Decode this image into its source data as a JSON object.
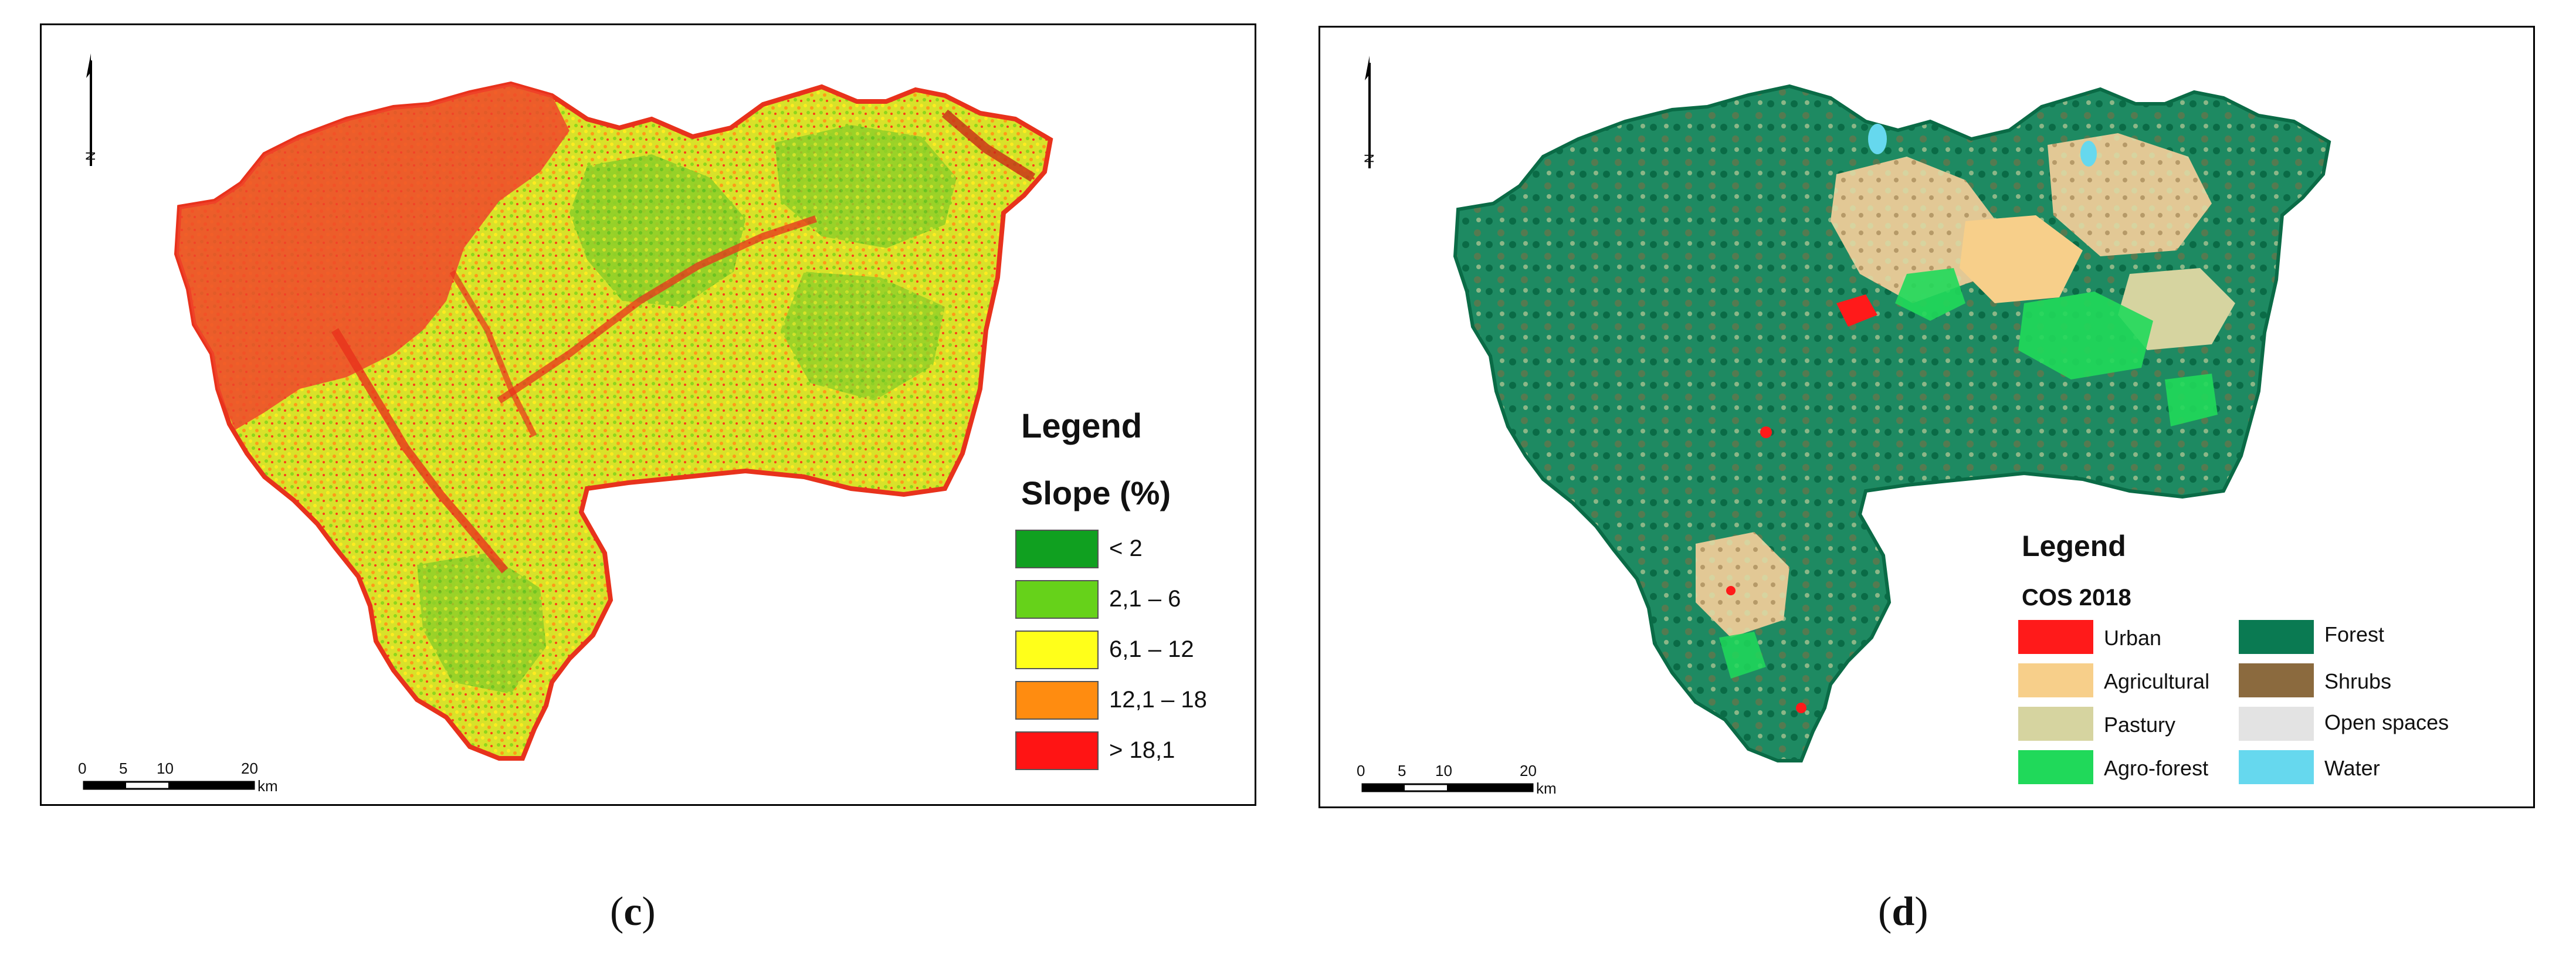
{
  "panel_c": {
    "legend_title": "Legend",
    "legend_subtitle": "Slope (%)",
    "classes": [
      {
        "label": "< 2",
        "color": "#10a020"
      },
      {
        "label": "2,1 –  6",
        "color": "#66d21a"
      },
      {
        "label": "6,1 – 12",
        "color": "#ffff1a"
      },
      {
        "label": "12,1 – 18",
        "color": "#ff8c10"
      },
      {
        "label": "> 18,1",
        "color": "#ff1414"
      }
    ],
    "scale_ticks": [
      "0",
      "5",
      "10",
      "20"
    ],
    "scale_unit": "km",
    "north_label": "N",
    "caption_open": "(",
    "caption_letter": "c",
    "caption_close": ")"
  },
  "panel_d": {
    "legend_title": "Legend",
    "legend_subtitle": "COS 2018",
    "classes": [
      {
        "label": "Urban",
        "color": "#ff1a1a"
      },
      {
        "label": "Agricultural",
        "color": "#f7cf8a"
      },
      {
        "label": "Pastury",
        "color": "#d6d4a0"
      },
      {
        "label": "Agro-forest",
        "color": "#20d95a"
      },
      {
        "label": "Forest",
        "color": "#0a7a52"
      },
      {
        "label": "Shrubs",
        "color": "#8b6a3e"
      },
      {
        "label": "Open spaces",
        "color": "#e3e3e3"
      },
      {
        "label": "Water",
        "color": "#66d8ee"
      }
    ],
    "scale_ticks": [
      "0",
      "5",
      "10",
      "20"
    ],
    "scale_unit": "km",
    "north_label": "N",
    "caption_open": "(",
    "caption_letter": "d",
    "caption_close": ")"
  }
}
